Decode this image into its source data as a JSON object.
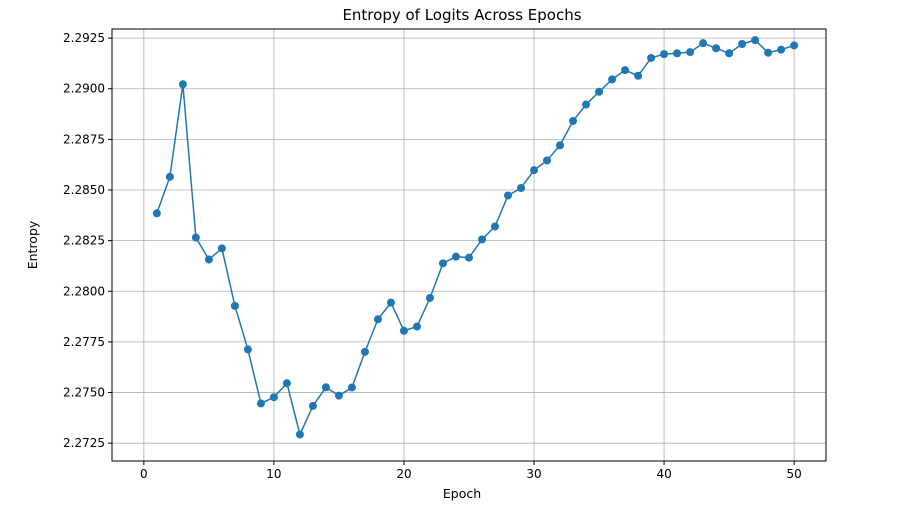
{
  "chart_data": {
    "type": "line",
    "title": "Entropy of Logits Across Epochs",
    "xlabel": "Epoch",
    "ylabel": "Entropy",
    "xlim": [
      -2.45,
      52.45
    ],
    "ylim": [
      2.27162,
      2.29295
    ],
    "xticks": [
      0,
      10,
      20,
      30,
      40,
      50
    ],
    "yticks": [
      2.2725,
      2.275,
      2.2775,
      2.28,
      2.2825,
      2.285,
      2.2875,
      2.29,
      2.2925
    ],
    "ytick_labels": [
      "2.2725",
      "2.2750",
      "2.2775",
      "2.2800",
      "2.2825",
      "2.2850",
      "2.2875",
      "2.2900",
      "2.2925"
    ],
    "grid": true,
    "series": [
      {
        "color": "#1f77b4",
        "marker": "circle",
        "x": [
          1,
          2,
          3,
          4,
          5,
          6,
          7,
          8,
          9,
          10,
          11,
          12,
          13,
          14,
          15,
          16,
          17,
          18,
          19,
          20,
          21,
          22,
          23,
          24,
          25,
          26,
          27,
          28,
          29,
          30,
          31,
          32,
          33,
          34,
          35,
          36,
          37,
          38,
          39,
          40,
          41,
          42,
          43,
          44,
          45,
          46,
          47,
          48,
          49,
          50
        ],
        "y": [
          2.28385,
          2.28565,
          2.29022,
          2.28265,
          2.28157,
          2.28212,
          2.27928,
          2.27713,
          2.27446,
          2.27477,
          2.27546,
          2.27293,
          2.27434,
          2.27526,
          2.27485,
          2.27525,
          2.27701,
          2.27862,
          2.27944,
          2.27805,
          2.27826,
          2.27967,
          2.28138,
          2.28171,
          2.28166,
          2.28256,
          2.2832,
          2.28473,
          2.2851,
          2.28598,
          2.28646,
          2.28721,
          2.28841,
          2.28922,
          2.28985,
          2.29046,
          2.29092,
          2.29064,
          2.29152,
          2.29171,
          2.29175,
          2.29181,
          2.29225,
          2.292,
          2.29175,
          2.29221,
          2.2924,
          2.29178,
          2.29193,
          2.29214
        ]
      }
    ]
  }
}
